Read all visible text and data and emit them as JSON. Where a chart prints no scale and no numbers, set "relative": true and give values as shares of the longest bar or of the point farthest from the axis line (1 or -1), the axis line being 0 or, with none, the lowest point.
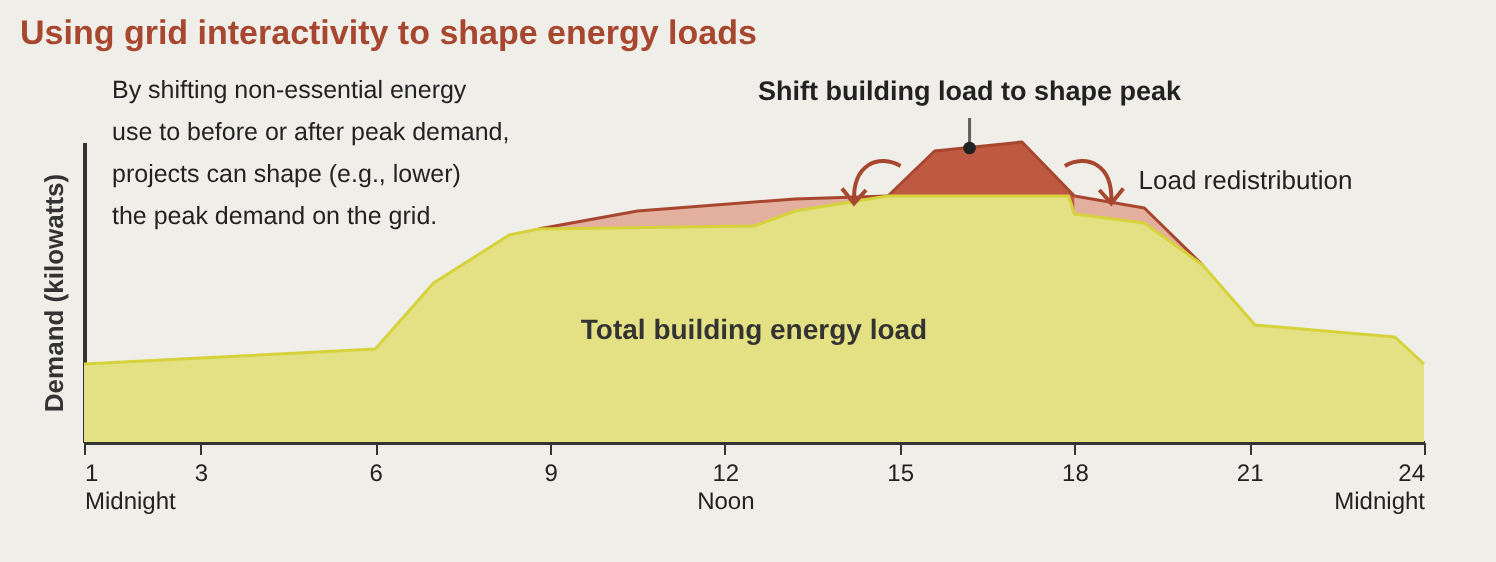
{
  "chart_data": {
    "type": "area",
    "title": "Using grid interactivity to shape energy loads",
    "ylabel": "Demand (kilowatts)",
    "relative": true,
    "marker": "none",
    "line_style": "solid",
    "grid": false,
    "xlim": [
      1,
      24
    ],
    "xticks": [
      {
        "value": 1,
        "label": "1\nMidnight"
      },
      3,
      6,
      9,
      {
        "value": 12,
        "label": "12\nNoon"
      },
      15,
      18,
      21,
      {
        "value": 24,
        "label": "24\nMidnight"
      }
    ],
    "annotations": [
      "By shifting non-essential energy use to before or after peak demand, projects can shape (e.g., lower) the peak demand on the grid.",
      {
        "text": "Shift building load to shape peak",
        "x": 16.2,
        "y": 0.98
      },
      "Load redistribution"
    ],
    "series": [
      {
        "color": "#e3b09f",
        "x": [
          8.8,
          10.5,
          13.2,
          14.8
        ],
        "values": [
          0.71,
          0.77,
          0.81,
          0.82
        ]
      },
      {
        "color": "#e3b09f",
        "x": [
          18,
          19.2,
          20.2
        ],
        "values": [
          0.82,
          0.78,
          0.59
        ]
      },
      {
        "color": "#bd5a41",
        "x": [
          14.8,
          15.6,
          17.1,
          18
        ],
        "values": [
          0.82,
          0.97,
          1.0,
          0.82
        ]
      },
      {
        "name": "Total building energy load",
        "color": "#e3e184",
        "x": [
          1,
          3,
          6,
          7,
          8.3,
          8.8,
          12.5,
          13.2,
          14.8,
          17.9,
          18,
          19.2,
          20.2,
          21.1,
          23.5,
          24
        ],
        "values": [
          0.26,
          0.28,
          0.31,
          0.53,
          0.69,
          0.71,
          0.72,
          0.77,
          0.82,
          0.82,
          0.76,
          0.73,
          0.59,
          0.39,
          0.35,
          0.26
        ]
      }
    ]
  }
}
